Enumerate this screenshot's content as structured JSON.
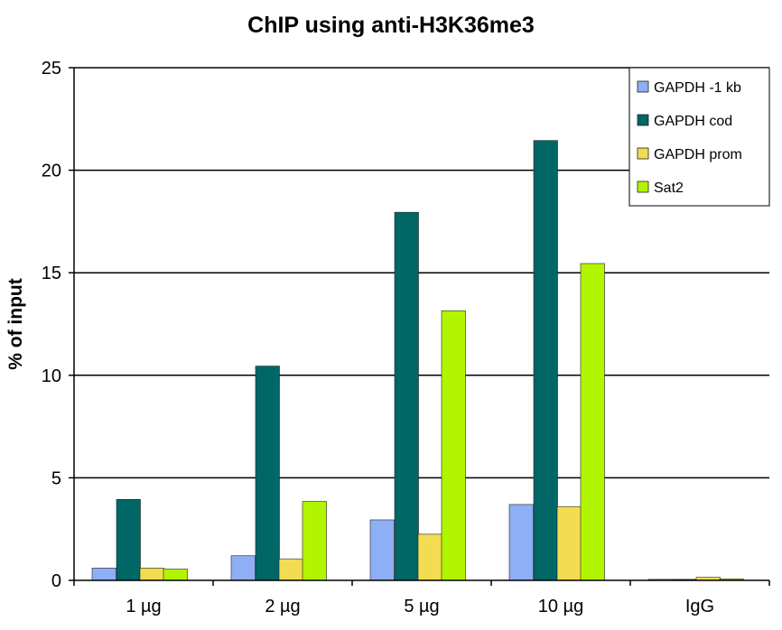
{
  "chart_data": {
    "type": "bar",
    "title": "ChIP using anti-H3K36me3",
    "xlabel": "",
    "ylabel": "% of input",
    "categories": [
      "1 µg",
      "2 µg",
      "5 µg",
      "10 µg",
      "IgG"
    ],
    "ylim": [
      0,
      25
    ],
    "yticks": [
      0,
      5,
      10,
      15,
      20,
      25
    ],
    "grid": true,
    "legend_position": "top-right",
    "series": [
      {
        "name": "GAPDH -1 kb",
        "color": "#8eaef5",
        "values": [
          0.6,
          1.2,
          2.95,
          3.7,
          0.05
        ]
      },
      {
        "name": "GAPDH cod",
        "color": "#006666",
        "values": [
          3.95,
          10.45,
          17.95,
          21.45,
          0.05
        ]
      },
      {
        "name": "GAPDH prom",
        "color": "#f2dc52",
        "values": [
          0.6,
          1.05,
          2.25,
          3.6,
          0.15
        ]
      },
      {
        "name": "Sat2",
        "color": "#b2f500",
        "values": [
          0.55,
          3.85,
          13.15,
          15.45,
          0.07
        ]
      }
    ]
  }
}
